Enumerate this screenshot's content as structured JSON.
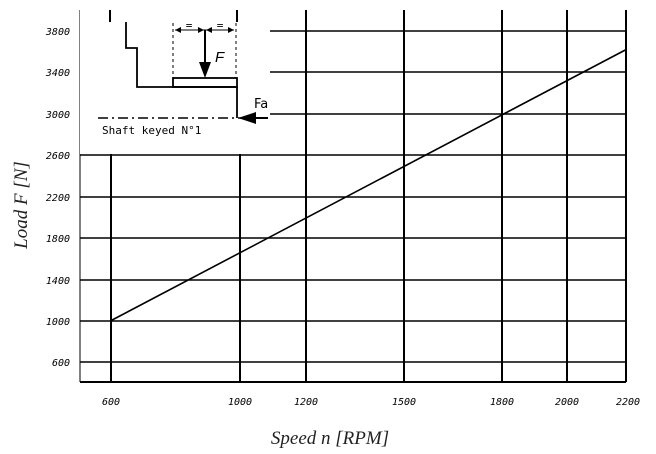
{
  "chart_data": {
    "type": "line",
    "xlabel": "Speed n [RPM]",
    "ylabel": "Load F [N]",
    "x_ticks": [
      "600",
      "1000",
      "1200",
      "1500",
      "1800",
      "2000",
      "2200"
    ],
    "y_ticks": [
      "600",
      "1000",
      "1400",
      "1800",
      "2200",
      "2600",
      "3000",
      "3400",
      "3800"
    ],
    "grid": true,
    "series": [
      {
        "x": [
          600,
          2200
        ],
        "y": [
          1000,
          3620
        ]
      }
    ],
    "xlim": [
      600,
      2200
    ],
    "ylim": [
      440,
      4000
    ]
  },
  "inset": {
    "caption": "Shaft keyed N°1",
    "force_label": "F",
    "axial_force_label": "Fa",
    "equal_mark": "="
  }
}
